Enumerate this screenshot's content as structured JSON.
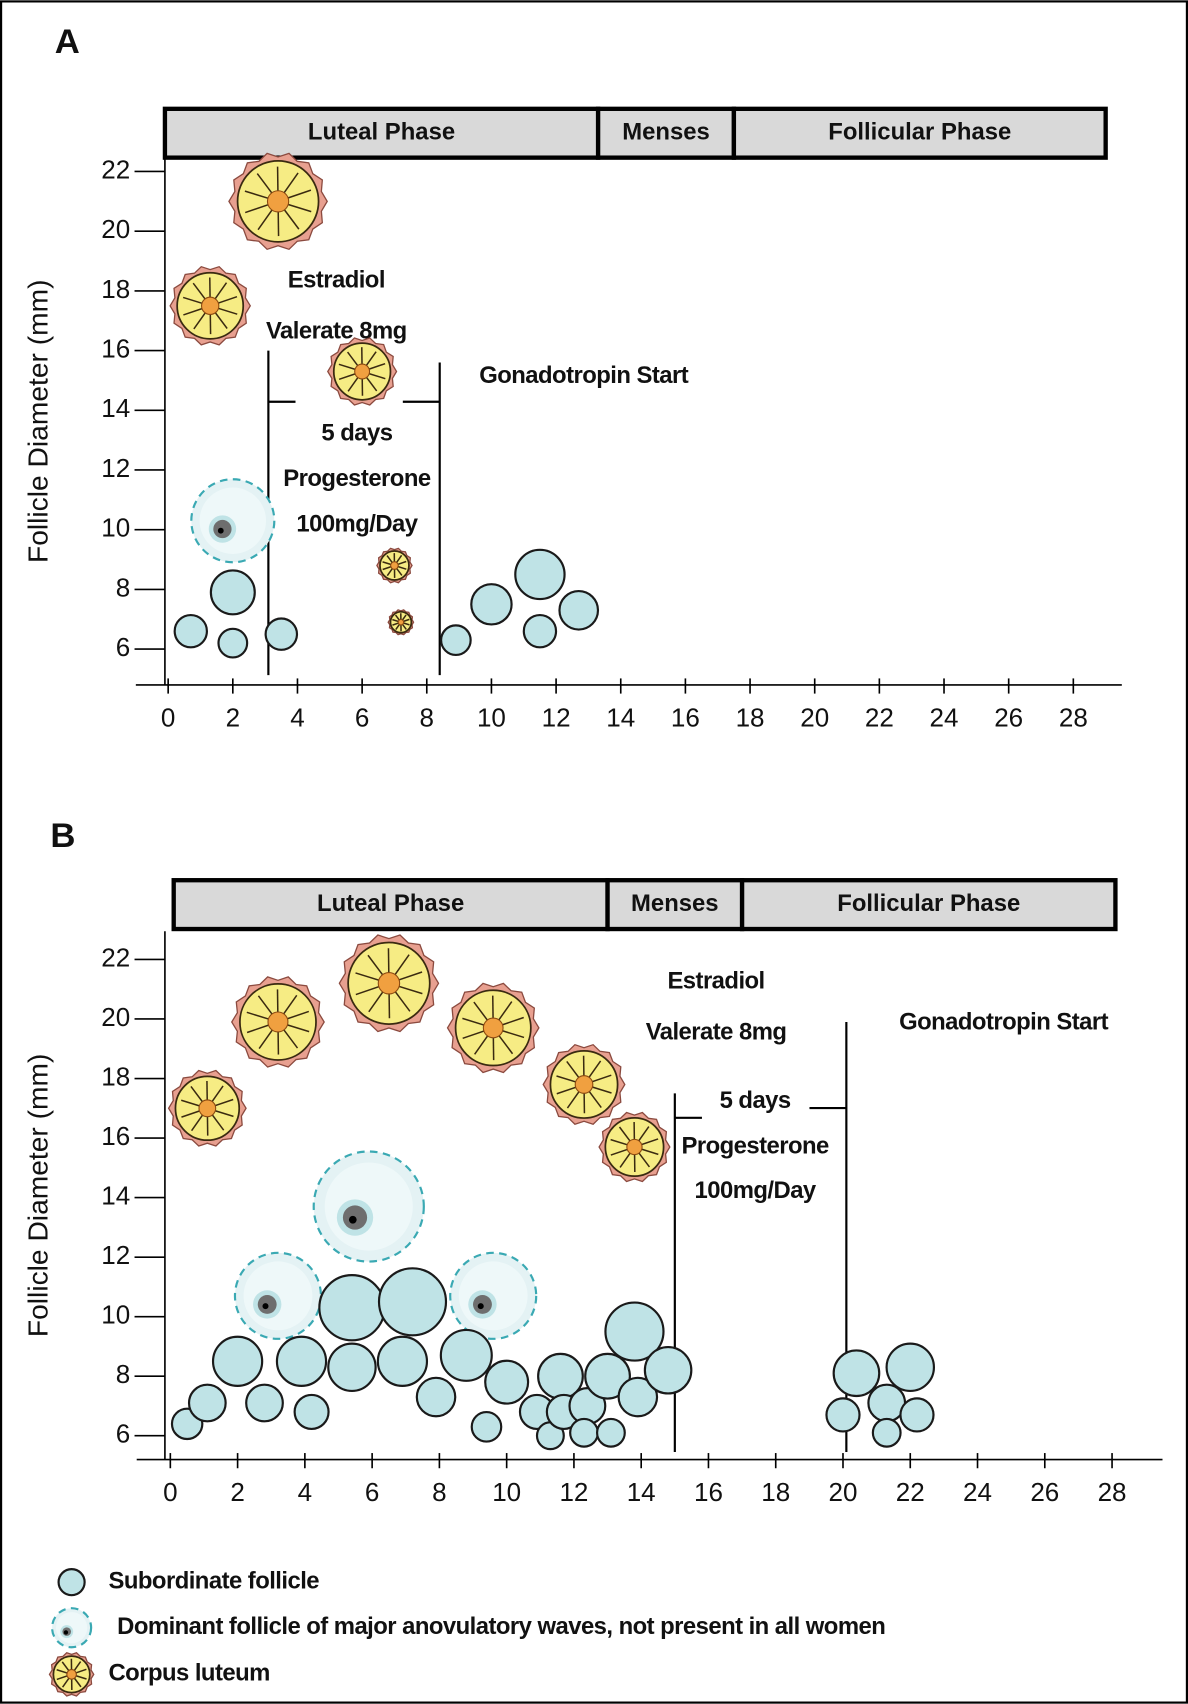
{
  "chart_data": [
    {
      "type": "scatter",
      "panel_label": "A",
      "y_label": "Follicle Diameter (mm)",
      "xlim": [
        -1,
        29.5
      ],
      "ylim": [
        4.8,
        23.3
      ],
      "xticks": [
        0,
        2,
        4,
        6,
        8,
        10,
        12,
        14,
        16,
        18,
        20,
        22,
        24,
        26,
        28
      ],
      "yticks": [
        6,
        8,
        10,
        12,
        14,
        16,
        18,
        20,
        22
      ],
      "phases": [
        {
          "label": "Luteal Phase",
          "start": -0.1,
          "end": 13.3
        },
        {
          "label": "Menses",
          "start": 13.3,
          "end": 17.5
        },
        {
          "label": "Follicular Phase",
          "start": 17.5,
          "end": 29.0
        }
      ],
      "events": [
        {
          "x": 3.1,
          "y": 16.0
        },
        {
          "x": 8.4,
          "y": 15.6
        }
      ],
      "annotations": [
        "Estradiol",
        "Valerate 8mg",
        "5 days",
        "Progesterone",
        "100mg/Day",
        "Gonadotropin Start"
      ],
      "series": [
        {
          "marker": "subordinate",
          "color": "#bfe3e6",
          "x": [
            0.7,
            2.0,
            2.0,
            3.5,
            8.9,
            10.0,
            11.5,
            11.5,
            12.7
          ],
          "values": [
            6.6,
            7.9,
            6.2,
            6.5,
            6.3,
            7.5,
            8.5,
            6.6,
            7.3
          ]
        },
        {
          "marker": "dominant",
          "color": "#3aa9b3",
          "x": [
            2.0
          ],
          "values": [
            10.3
          ]
        },
        {
          "marker": "corpus-luteum",
          "color": "#f6ec84",
          "x": [
            3.4,
            1.3,
            6.0,
            7.0,
            7.2
          ],
          "values": [
            21.0,
            17.5,
            15.3,
            8.8,
            6.9
          ]
        }
      ]
    },
    {
      "type": "scatter",
      "panel_label": "B",
      "y_label": "Follicle Diameter (mm)",
      "xlim": [
        -1,
        29.5
      ],
      "ylim": [
        5.2,
        23.0
      ],
      "xticks": [
        0,
        2,
        4,
        6,
        8,
        10,
        12,
        14,
        16,
        18,
        20,
        22,
        24,
        26,
        28
      ],
      "yticks": [
        6,
        8,
        10,
        12,
        14,
        16,
        18,
        20,
        22
      ],
      "phases": [
        {
          "label": "Luteal Phase",
          "start": 0.1,
          "end": 13.0
        },
        {
          "label": "Menses",
          "start": 13.0,
          "end": 17.0
        },
        {
          "label": "Follicular Phase",
          "start": 17.0,
          "end": 28.1
        }
      ],
      "events": [
        {
          "x": 15.0,
          "y": 17.5
        },
        {
          "x": 20.1,
          "y": 19.9
        }
      ],
      "annotations": [
        "Estradiol",
        "Valerate 8mg",
        "5 days",
        "Progesterone",
        "100mg/Day",
        "Gonadotropin Start"
      ],
      "series": [
        {
          "name": "Subordinate follicle",
          "marker": "subordinate",
          "color": "#bfe3e6",
          "x": [
            0.5,
            1.1,
            2.0,
            2.8,
            3.9,
            4.2,
            5.4,
            5.4,
            6.9,
            7.2,
            7.9,
            8.8,
            9.4,
            10.0,
            10.9,
            11.3,
            11.6,
            11.7,
            12.4,
            12.3,
            13.1,
            13.0,
            13.8,
            13.9,
            14.8,
            20.4,
            20.0,
            21.3,
            21.3,
            22.0,
            22.2
          ],
          "values": [
            6.4,
            7.1,
            8.5,
            7.1,
            8.5,
            6.8,
            10.3,
            8.3,
            8.5,
            10.5,
            7.3,
            8.7,
            6.3,
            7.8,
            6.8,
            6.0,
            8.0,
            6.8,
            7.0,
            6.1,
            6.1,
            8.0,
            9.5,
            7.3,
            8.2,
            8.1,
            6.7,
            7.1,
            6.1,
            8.3,
            6.7
          ]
        },
        {
          "name": "Dominant follicle of major anovulatory waves, not present in all women",
          "marker": "dominant",
          "color": "#3aa9b3",
          "x": [
            3.2,
            5.9,
            9.6
          ],
          "values": [
            10.7,
            13.7,
            10.7
          ]
        },
        {
          "name": "Corpus luteum",
          "marker": "corpus-luteum",
          "color": "#f6ec84",
          "x": [
            1.1,
            3.2,
            6.5,
            9.6,
            12.3,
            13.8
          ],
          "values": [
            17.0,
            19.9,
            21.2,
            19.7,
            17.8,
            15.7
          ]
        }
      ]
    }
  ]
}
